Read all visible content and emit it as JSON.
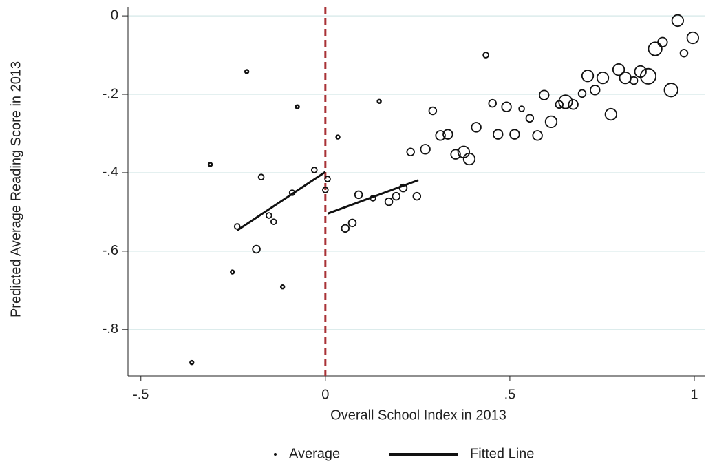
{
  "chart_data": {
    "type": "scatter",
    "x_label": "Overall School Index in 2013",
    "y_label": "Predicted Average Reading Score in 2013",
    "xlim": [
      -0.535,
      1.028
    ],
    "ylim": [
      -0.918,
      0.023
    ],
    "xticks": [
      {
        "value": -0.5,
        "label": "-.5"
      },
      0,
      {
        "value": 0.5,
        "label": ".5"
      },
      1
    ],
    "yticks": [
      0,
      {
        "value": -0.2,
        "label": "-.2"
      },
      {
        "value": -0.4,
        "label": "-.4"
      },
      {
        "value": -0.6,
        "label": "-.6"
      },
      {
        "value": -0.8,
        "label": "-.8"
      }
    ],
    "grid": true,
    "cutoff": 0,
    "cutoff_color": "#a83236",
    "legend": "bottom",
    "series": [
      {
        "name": "Average",
        "color": "#111111",
        "x": [
          -0.362,
          -0.312,
          -0.213,
          -0.076,
          -0.174,
          -0.239,
          -0.153,
          -0.14,
          -0.09,
          -0.03,
          -0.187,
          -0.252,
          -0.116,
          0,
          0.006,
          0.034,
          0.146,
          0.054,
          0.073,
          0.09,
          0.129,
          0.172,
          0.192,
          0.211,
          0.248,
          0.231,
          0.271,
          0.291,
          0.312,
          0.332,
          0.353,
          0.375,
          0.39,
          0.409,
          0.435,
          0.453,
          0.468,
          0.491,
          0.513,
          0.532,
          0.554,
          0.575,
          0.593,
          0.612,
          0.634,
          0.651,
          0.672,
          0.696,
          0.711,
          0.731,
          0.752,
          0.774,
          0.795,
          0.813,
          0.836,
          0.854,
          0.875,
          0.894,
          0.914,
          0.937,
          0.955,
          0.972,
          0.996
        ],
        "values": [
          -0.884,
          -0.379,
          -0.142,
          -0.232,
          -0.411,
          -0.537,
          -0.509,
          -0.525,
          -0.451,
          -0.393,
          -0.595,
          -0.653,
          -0.691,
          -0.444,
          -0.416,
          -0.309,
          -0.218,
          -0.542,
          -0.528,
          -0.456,
          -0.465,
          -0.474,
          -0.46,
          -0.439,
          -0.46,
          -0.347,
          -0.34,
          -0.242,
          -0.305,
          -0.302,
          -0.353,
          -0.347,
          -0.365,
          -0.284,
          -0.1,
          -0.223,
          -0.302,
          -0.232,
          -0.302,
          -0.237,
          -0.261,
          -0.305,
          -0.202,
          -0.27,
          -0.226,
          -0.219,
          -0.226,
          -0.198,
          -0.153,
          -0.189,
          -0.158,
          -0.251,
          -0.137,
          -0.158,
          -0.165,
          -0.142,
          -0.154,
          -0.084,
          -0.067,
          -0.189,
          -0.012,
          -0.095,
          -0.056
        ],
        "sizes": [
          1,
          1,
          1,
          1,
          2,
          2,
          2,
          2,
          2,
          2,
          3,
          1,
          1,
          2,
          2,
          1,
          1,
          3,
          3,
          3,
          2,
          3,
          3,
          3,
          3,
          3,
          4,
          3,
          4,
          4,
          4,
          5,
          5,
          4,
          2,
          3,
          4,
          4,
          4,
          2,
          3,
          4,
          4,
          5,
          3,
          6,
          4,
          3,
          5,
          4,
          5,
          5,
          5,
          5,
          3,
          5,
          7,
          6,
          4,
          6,
          5,
          3,
          5
        ]
      },
      {
        "name": "Fitted Line",
        "type": "line",
        "color": "#111111",
        "x": [
          -0.239,
          0,
          null,
          0.007,
          0.252
        ],
        "values": [
          -0.547,
          -0.398,
          null,
          -0.504,
          -0.419
        ]
      }
    ]
  }
}
